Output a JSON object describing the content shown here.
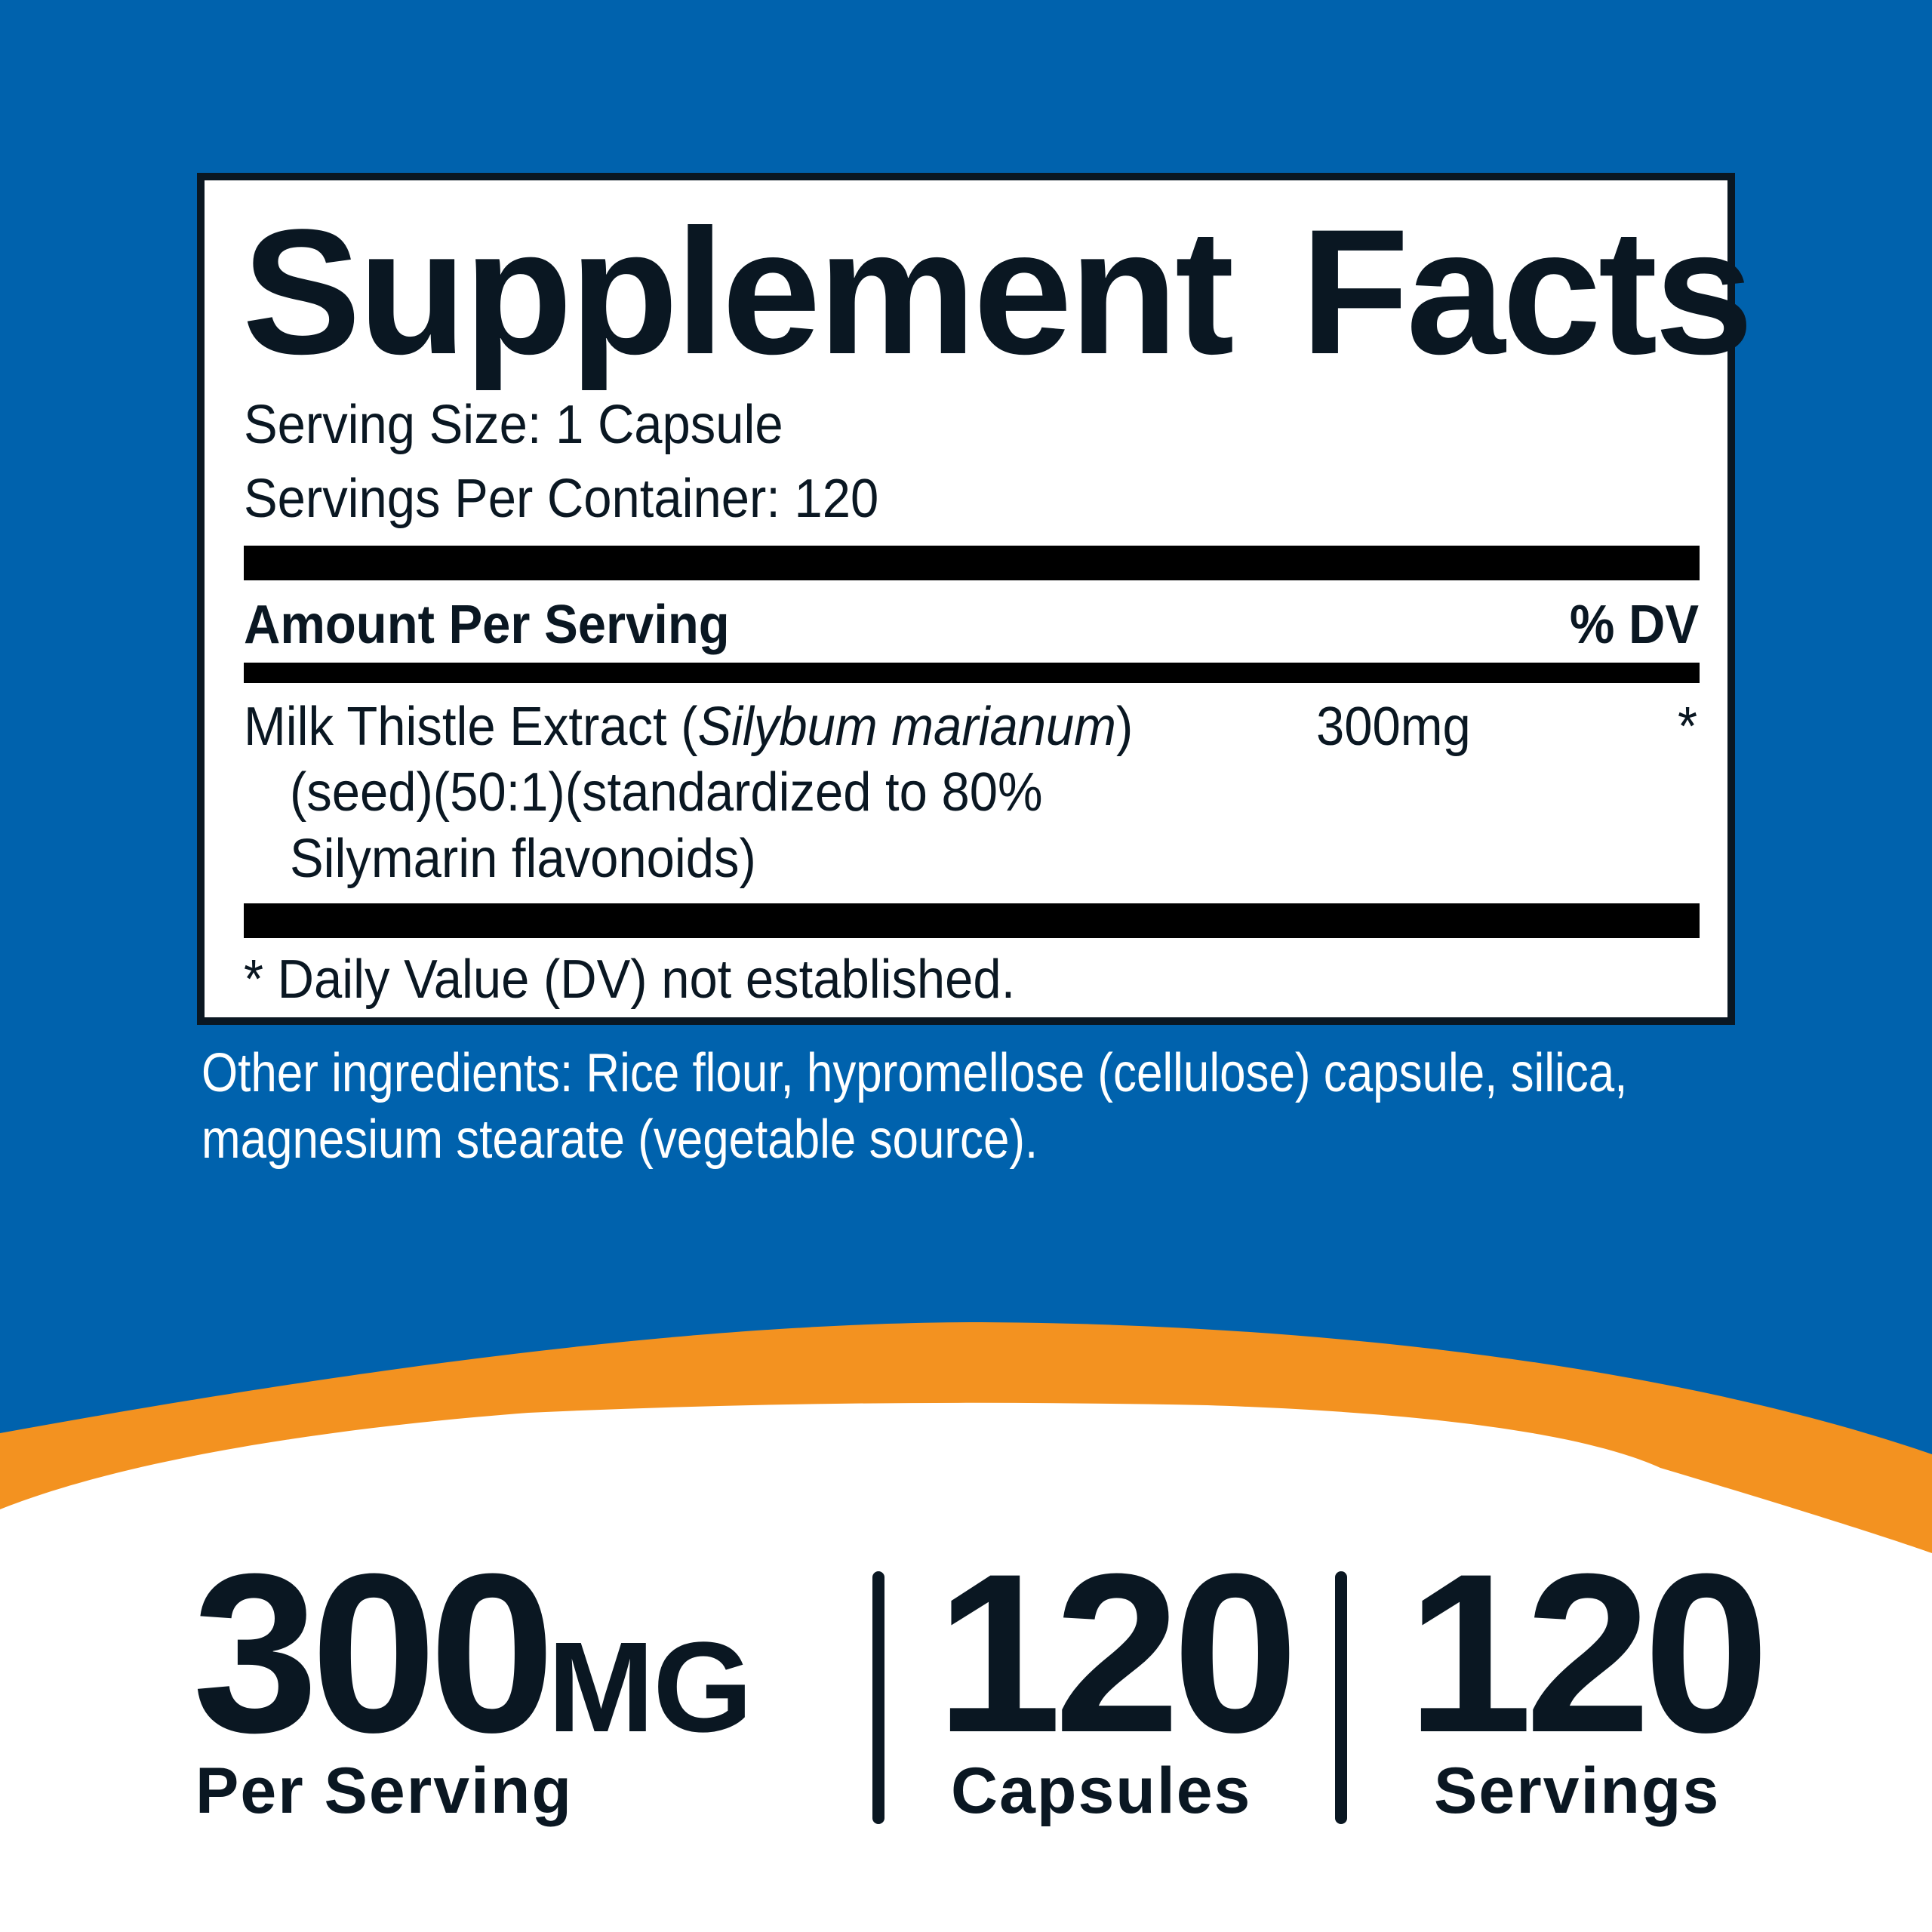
{
  "colors": {
    "blue": "#0062ad",
    "orange": "#f39220",
    "ink": "#0a1722"
  },
  "label": {
    "title": "Supplement Facts",
    "serving_size": "Serving Size: 1 Capsule",
    "servings_per_container": "Servings Per Container: 120",
    "amount_header": "Amount Per Serving",
    "dv_header": "% DV",
    "ingredient": {
      "name_prefix": "Milk Thistle Extract (",
      "latin_name": "Silybum marianum",
      "name_suffix": ")",
      "line2": "(seed)(50:1)(standardized to 80%",
      "line3": "Silymarin flavonoids)",
      "amount": "300mg",
      "dv": "*"
    },
    "footnote": "* Daily Value (DV) not established."
  },
  "other_ingredients": {
    "line1": "Other ingredients: Rice flour, hypromellose (cellulose) capsule, silica,",
    "line2": "magnesium stearate (vegetable source)."
  },
  "stats": [
    {
      "value": "300",
      "unit": "MG",
      "label": "Per Serving"
    },
    {
      "value": "120",
      "label": "Capsules"
    },
    {
      "value": "120",
      "label": "Servings"
    }
  ]
}
